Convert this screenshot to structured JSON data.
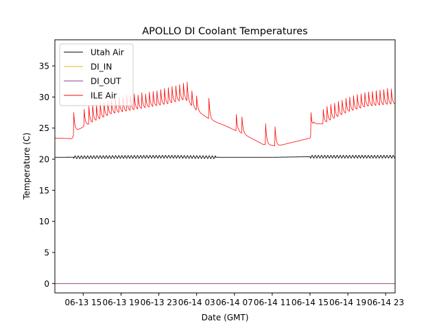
{
  "chart_data": {
    "type": "line",
    "title": "APOLLO DI Coolant Temperatures",
    "xlabel": "Date (GMT)",
    "ylabel": "Temperature (C)",
    "x_unit": "hours since 06-13 12:00 GMT",
    "xlim": [
      0,
      36
    ],
    "ylim": [
      -1.5,
      39.2
    ],
    "xticks": [
      {
        "value": 3,
        "label": "06-13 15"
      },
      {
        "value": 7,
        "label": "06-13 19"
      },
      {
        "value": 11,
        "label": "06-13 23"
      },
      {
        "value": 15,
        "label": "06-14 03"
      },
      {
        "value": 19,
        "label": "06-14 07"
      },
      {
        "value": 23,
        "label": "06-14 11"
      },
      {
        "value": 27,
        "label": "06-14 15"
      },
      {
        "value": 31,
        "label": "06-14 19"
      },
      {
        "value": 35,
        "label": "06-14 23"
      }
    ],
    "yticks": [
      0,
      5,
      10,
      15,
      20,
      25,
      30,
      35
    ],
    "grid": false,
    "legend_position": "top-left",
    "series": [
      {
        "name": "Utah Air",
        "color": "#000000",
        "baseline": [
          [
            0,
            20.3
          ],
          [
            12,
            20.4
          ],
          [
            18,
            20.3
          ],
          [
            23,
            20.3
          ],
          [
            27,
            20.4
          ],
          [
            36,
            20.4
          ]
        ],
        "oscillation": {
          "amplitude": 0.25,
          "period_hours": 0.33,
          "active_ranges": [
            [
              2,
              17
            ],
            [
              27,
              36
            ]
          ]
        }
      },
      {
        "name": "DI_IN",
        "color": "#e6b422",
        "baseline": [
          [
            0,
            0
          ],
          [
            36,
            0
          ]
        ]
      },
      {
        "name": "DI_OUT",
        "color": "#8e3a8e",
        "baseline": [
          [
            0,
            0
          ],
          [
            36,
            0
          ]
        ]
      },
      {
        "name": "ILE Air",
        "color": "#ff0000",
        "baseline": [
          [
            0,
            23.4
          ],
          [
            1.8,
            23.3
          ],
          [
            2.2,
            24.5
          ],
          [
            3,
            25.2
          ],
          [
            6,
            27.2
          ],
          [
            9,
            28.0
          ],
          [
            12,
            28.8
          ],
          [
            13.8,
            29.5
          ],
          [
            15,
            27.8
          ],
          [
            16.5,
            26.3
          ],
          [
            18,
            25.4
          ],
          [
            20,
            24.0
          ],
          [
            22,
            22.4
          ],
          [
            23.5,
            22.1
          ],
          [
            27,
            23.4
          ],
          [
            27.4,
            25.7
          ],
          [
            28.5,
            25.7
          ],
          [
            31,
            27.5
          ],
          [
            33,
            28.4
          ],
          [
            36,
            28.8
          ]
        ],
        "spikes": [
          [
            2.0,
            27.5
          ],
          [
            3.1,
            28.0
          ],
          [
            3.6,
            28.5
          ],
          [
            4.0,
            28.8
          ],
          [
            4.4,
            28.8
          ],
          [
            4.8,
            29.0
          ],
          [
            5.2,
            29.1
          ],
          [
            5.6,
            29.3
          ],
          [
            6.0,
            29.5
          ],
          [
            6.4,
            29.8
          ],
          [
            6.8,
            30.0
          ],
          [
            7.2,
            30.0
          ],
          [
            7.6,
            30.3
          ],
          [
            8.0,
            30.2
          ],
          [
            8.4,
            30.5
          ],
          [
            8.8,
            30.3
          ],
          [
            9.2,
            30.7
          ],
          [
            9.6,
            30.5
          ],
          [
            10.0,
            30.8
          ],
          [
            10.4,
            30.9
          ],
          [
            10.8,
            31.0
          ],
          [
            11.2,
            31.2
          ],
          [
            11.6,
            31.4
          ],
          [
            12.0,
            31.5
          ],
          [
            12.4,
            31.7
          ],
          [
            12.8,
            31.8
          ],
          [
            13.2,
            32.0
          ],
          [
            13.6,
            32.2
          ],
          [
            14.0,
            32.4
          ],
          [
            14.5,
            31.0
          ],
          [
            15.0,
            30.2
          ],
          [
            16.3,
            29.8
          ],
          [
            19.2,
            27.2
          ],
          [
            19.8,
            26.8
          ],
          [
            22.3,
            25.7
          ],
          [
            23.3,
            25.2
          ],
          [
            27.1,
            27.5
          ],
          [
            28.4,
            28.0
          ],
          [
            28.8,
            28.5
          ],
          [
            29.2,
            28.8
          ],
          [
            29.6,
            29.0
          ],
          [
            30.0,
            29.3
          ],
          [
            30.4,
            29.5
          ],
          [
            30.8,
            29.8
          ],
          [
            31.2,
            30.0
          ],
          [
            31.6,
            30.2
          ],
          [
            32.0,
            30.4
          ],
          [
            32.4,
            30.5
          ],
          [
            32.8,
            30.7
          ],
          [
            33.2,
            30.8
          ],
          [
            33.6,
            30.9
          ],
          [
            34.0,
            31.0
          ],
          [
            34.4,
            31.1
          ],
          [
            34.8,
            31.2
          ],
          [
            35.2,
            31.4
          ],
          [
            35.6,
            31.3
          ]
        ]
      }
    ]
  }
}
